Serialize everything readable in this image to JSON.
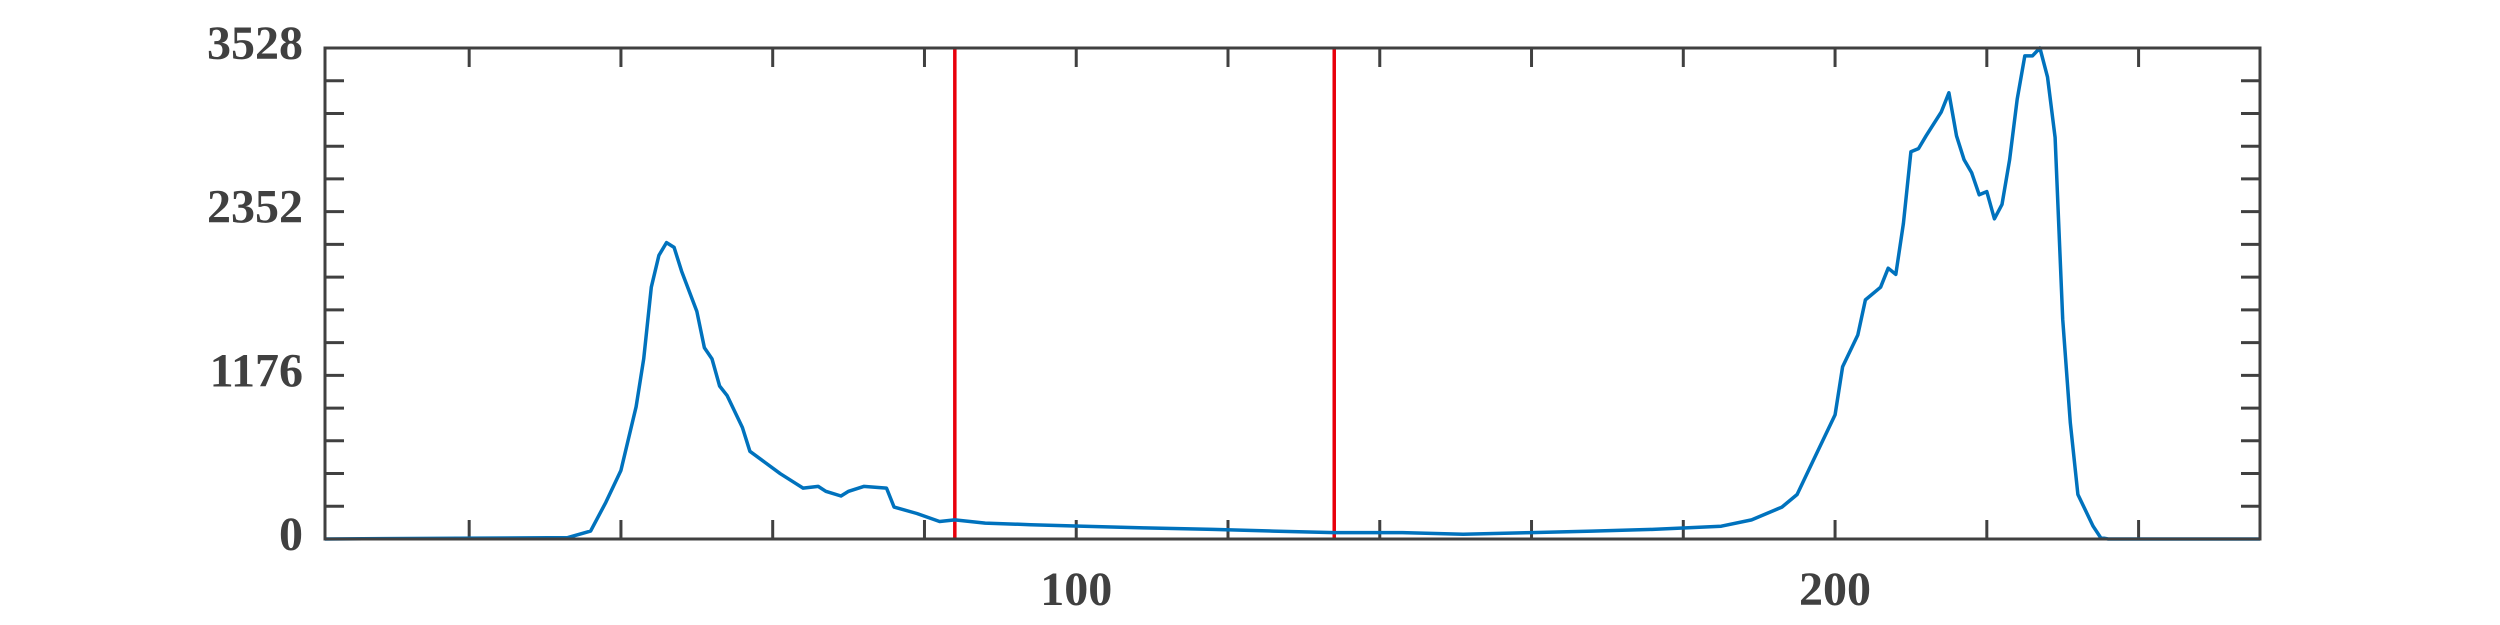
{
  "chart_data": {
    "type": "line",
    "x": [
      1,
      33,
      36,
      38,
      40,
      42,
      43,
      44,
      45,
      46,
      47,
      48,
      50,
      51,
      52,
      53,
      54,
      56,
      57,
      59,
      61,
      63,
      64,
      66,
      67,
      69,
      70,
      72,
      75,
      76,
      79,
      82,
      84,
      88,
      94,
      101,
      109,
      118,
      126,
      134,
      143,
      151,
      160,
      168,
      176,
      185,
      189,
      193,
      195,
      197,
      200,
      201,
      203,
      204,
      206,
      207,
      208,
      209,
      210,
      211,
      212,
      214,
      215,
      216,
      217,
      218,
      219,
      220,
      221,
      222,
      223,
      224,
      225,
      226,
      227,
      228,
      229,
      230,
      231,
      232,
      234,
      235,
      236,
      256
    ],
    "values": [
      0,
      10,
      57,
      263,
      492,
      950,
      1294,
      1809,
      2038,
      2130,
      2095,
      1924,
      1637,
      1374,
      1294,
      1099,
      1030,
      801,
      630,
      550,
      469,
      400,
      366,
      378,
      343,
      309,
      343,
      378,
      366,
      229,
      183,
      126,
      137,
      114,
      103,
      92,
      80,
      69,
      57,
      46,
      46,
      34,
      46,
      57,
      69,
      92,
      137,
      229,
      320,
      550,
      893,
      1237,
      1466,
      1718,
      1809,
      1946,
      1901,
      2267,
      2782,
      2805,
      2897,
      3069,
      3206,
      2897,
      2725,
      2633,
      2473,
      2496,
      2301,
      2404,
      2725,
      3160,
      3471,
      3471,
      3528,
      3320,
      2885,
      1580,
      836,
      320,
      92,
      10,
      0,
      0
    ],
    "color": "#0072bd",
    "xlim": [
      1,
      256
    ],
    "xticks": [
      100,
      200
    ],
    "xminorticks": [
      20,
      40,
      60,
      80,
      120,
      140,
      160,
      180,
      220,
      240
    ],
    "ylim": [
      0,
      3528
    ],
    "yticks": [
      0,
      1176,
      2352,
      3528
    ],
    "yminorticks": [
      235.2,
      470.4,
      705.6,
      940.8,
      1411.2,
      1646.4,
      1881.6,
      2116.8,
      2587.2,
      2822.4,
      3057.6,
      3292.8
    ],
    "vlines": [
      84,
      134
    ],
    "vline_color": "#e8000b"
  }
}
